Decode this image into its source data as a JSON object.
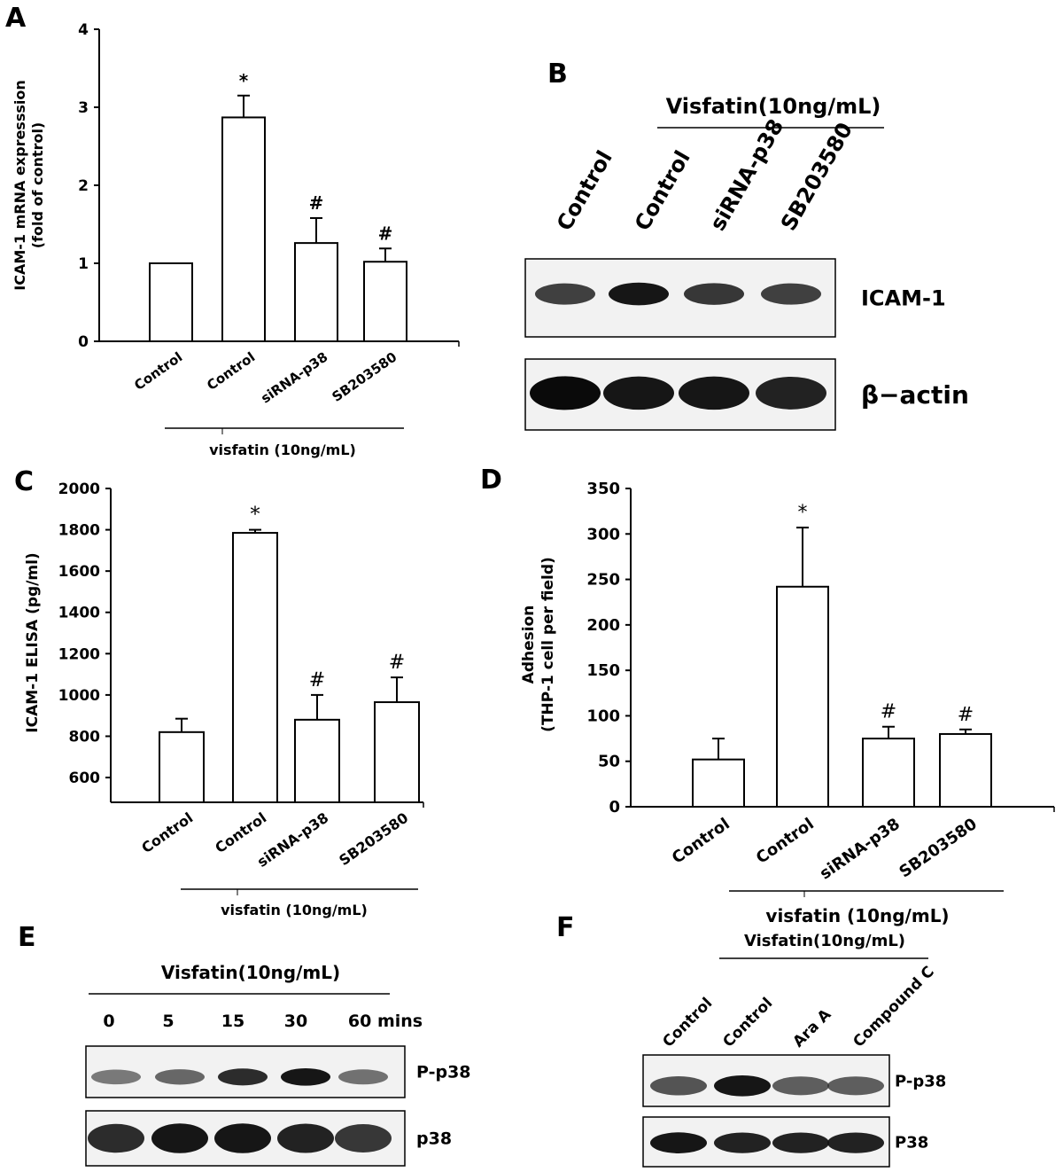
{
  "chart_data": [
    {
      "panel": "A",
      "type": "bar",
      "ylabel": "ICAM-1 mRNA expresssion",
      "ylabel2": "(fold of control)",
      "categories": [
        "Control",
        "Control",
        "siRNA-p38",
        "SB203580"
      ],
      "values": [
        1.0,
        2.87,
        1.26,
        1.02
      ],
      "errors": [
        0,
        0.28,
        0.32,
        0.17
      ],
      "annotations": [
        "",
        "*",
        "#",
        "#"
      ],
      "ylim": [
        0,
        4
      ],
      "yticks": [
        0,
        1,
        2,
        3,
        4
      ],
      "group_label": "visfatin (10ng/mL)"
    },
    {
      "panel": "C",
      "type": "bar",
      "ylabel": "ICAM-1 ELISA (pg/ml)",
      "categories": [
        "Control",
        "Control",
        "siRNA-p38",
        "SB203580"
      ],
      "values": [
        820,
        1785,
        880,
        965
      ],
      "errors": [
        65,
        15,
        120,
        120
      ],
      "annotations": [
        "",
        "*",
        "#",
        "#"
      ],
      "ylim": [
        480,
        2000
      ],
      "yticks": [
        600,
        800,
        1000,
        1200,
        1400,
        1600,
        1800,
        2000
      ],
      "group_label": "visfatin (10ng/mL)"
    },
    {
      "panel": "D",
      "type": "bar",
      "ylabel": "Adhesion",
      "ylabel2": "(THP-1 cell per field)",
      "categories": [
        "Control",
        "Control",
        "siRNA-p38",
        "SB203580"
      ],
      "values": [
        52,
        242,
        75,
        80
      ],
      "errors": [
        23,
        65,
        13,
        5
      ],
      "annotations": [
        "",
        "*",
        "#",
        "#"
      ],
      "ylim": [
        0,
        350
      ],
      "yticks": [
        0,
        50,
        100,
        150,
        200,
        250,
        300,
        350
      ],
      "group_label": "visfatin (10ng/mL)"
    }
  ],
  "blots": {
    "B": {
      "letter": "B",
      "header": "Visfatin(10ng/mL)",
      "lanes": [
        "Control",
        "Control",
        "siRNA-p38",
        "SB203580"
      ],
      "rows": [
        {
          "label": "ICAM-1",
          "intensity": [
            0.75,
            0.95,
            0.8,
            0.75
          ]
        },
        {
          "label": "β−actin",
          "intensity": [
            1.0,
            0.95,
            0.95,
            0.9
          ]
        }
      ]
    },
    "E": {
      "letter": "E",
      "header": "Visfatin(10ng/mL)",
      "lanes": [
        "0",
        "5",
        "15",
        "30",
        "60 mins"
      ],
      "rows": [
        {
          "label": "P-p38",
          "intensity": [
            0.45,
            0.55,
            0.85,
            0.95,
            0.5
          ]
        },
        {
          "label": "p38",
          "intensity": [
            0.85,
            0.95,
            0.95,
            0.9,
            0.8
          ]
        }
      ]
    },
    "F": {
      "letter": "F",
      "header": "Visfatin(10ng/mL)",
      "lanes": [
        "Control",
        "Control",
        "Ara A",
        "Compound C"
      ],
      "rows": [
        {
          "label": "P-p38",
          "intensity": [
            0.65,
            0.95,
            0.6,
            0.6
          ]
        },
        {
          "label": "P38",
          "intensity": [
            0.95,
            0.9,
            0.9,
            0.9
          ]
        }
      ]
    }
  },
  "panel_letters": {
    "A": "A",
    "C": "C",
    "D": "D"
  }
}
